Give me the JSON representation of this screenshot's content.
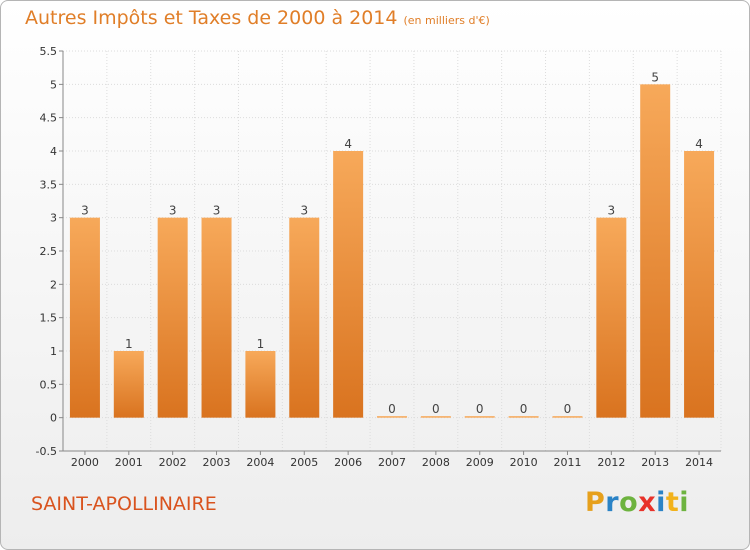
{
  "header": {
    "title": "Autres Impôts et Taxes de 2000 à 2014",
    "unit": "(en milliers d'€)"
  },
  "footer": {
    "commune": "SAINT-APOLLINAIRE",
    "logo": "Proxiti"
  },
  "colors": {
    "bar_top": "#f7a95a",
    "bar_bottom": "#d9731f",
    "title": "#e07e28",
    "commune": "#d9531e"
  },
  "chart_data": {
    "type": "bar",
    "title": "Autres Impôts et Taxes de 2000 à 2014",
    "subtitle": "(en milliers d'€)",
    "categories": [
      "2000",
      "2001",
      "2002",
      "2003",
      "2004",
      "2005",
      "2006",
      "2007",
      "2008",
      "2009",
      "2010",
      "2011",
      "2012",
      "2013",
      "2014"
    ],
    "values": [
      3,
      1,
      3,
      3,
      1,
      3,
      4,
      0,
      0,
      0,
      0,
      0,
      3,
      5,
      4
    ],
    "data_labels": [
      "3",
      "1",
      "3",
      "3",
      "1",
      "3",
      "4",
      "0",
      "0",
      "0",
      "0",
      "0",
      "3",
      "5",
      "4"
    ],
    "yticks": [
      "-0.5",
      "0",
      "0.5",
      "1",
      "1.5",
      "2",
      "2.5",
      "3",
      "3.5",
      "4",
      "4.5",
      "5",
      "5.5"
    ],
    "ylim": [
      -0.5,
      5.5
    ],
    "grid": true,
    "legend": "none"
  }
}
